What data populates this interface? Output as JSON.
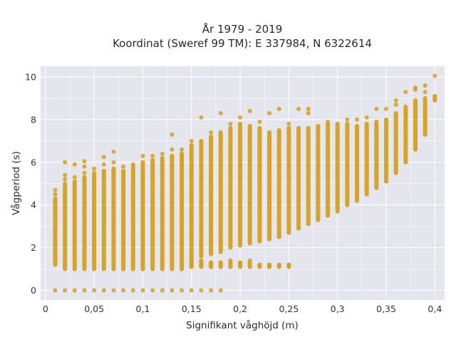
{
  "chart_data": {
    "type": "scatter",
    "title_line1": "År 1979 - 2019",
    "title_line2": "Koordinat (Sweref 99 TM): E 337984, N 6322614",
    "xlabel": "Signifikant våghöjd (m)",
    "ylabel": "Vågperiod (s)",
    "xlim": [
      -0.005,
      0.41
    ],
    "ylim": [
      -0.45,
      10.5
    ],
    "x_ticks": [
      0,
      0.05,
      0.1,
      0.15,
      0.2,
      0.25,
      0.3,
      0.35,
      0.4
    ],
    "x_tick_labels": [
      "0",
      "0,05",
      "0,1",
      "0,15",
      "0,2",
      "0,25",
      "0,3",
      "0,35",
      "0,4"
    ],
    "y_ticks": [
      0,
      2,
      4,
      6,
      8,
      10
    ],
    "y_tick_labels": [
      "0",
      "2",
      "4",
      "6",
      "8",
      "10"
    ],
    "grid": true,
    "colors": {
      "marker": "#d4a01c",
      "plot_bg": "#e5e5ee",
      "grid": "#ffffff"
    },
    "columns": [
      {
        "x": 0.01,
        "low": 1.2,
        "high": 4.3,
        "outliers": [
          4.5,
          4.7,
          2.7,
          0
        ]
      },
      {
        "x": 0.02,
        "low": 1.0,
        "high": 5.0,
        "outliers": [
          5.2,
          5.4,
          6.0,
          0
        ]
      },
      {
        "x": 0.03,
        "low": 1.0,
        "high": 5.1,
        "outliers": [
          5.3,
          5.9,
          0
        ]
      },
      {
        "x": 0.04,
        "low": 1.0,
        "high": 5.3,
        "outliers": [
          5.5,
          5.8,
          6.05,
          0
        ]
      },
      {
        "x": 0.05,
        "low": 1.0,
        "high": 5.5,
        "outliers": [
          5.7,
          0
        ]
      },
      {
        "x": 0.06,
        "low": 1.0,
        "high": 5.6,
        "outliers": [
          5.9,
          6.25,
          0
        ]
      },
      {
        "x": 0.07,
        "low": 1.0,
        "high": 5.7,
        "outliers": [
          6.0,
          6.5,
          0
        ]
      },
      {
        "x": 0.08,
        "low": 1.0,
        "high": 5.6,
        "outliers": [
          5.8,
          0
        ]
      },
      {
        "x": 0.09,
        "low": 1.0,
        "high": 5.8,
        "outliers": [
          5.9,
          0
        ]
      },
      {
        "x": 0.1,
        "low": 1.0,
        "high": 6.0,
        "outliers": [
          6.3,
          0
        ]
      },
      {
        "x": 0.11,
        "low": 1.0,
        "high": 6.1,
        "outliers": [
          6.3,
          0
        ]
      },
      {
        "x": 0.12,
        "low": 1.0,
        "high": 6.2,
        "outliers": [
          6.4,
          0
        ]
      },
      {
        "x": 0.13,
        "low": 1.0,
        "high": 6.3,
        "outliers": [
          6.6,
          7.3,
          0
        ]
      },
      {
        "x": 0.14,
        "low": 1.0,
        "high": 6.4,
        "outliers": [
          6.6,
          0
        ]
      },
      {
        "x": 0.15,
        "low": 1.5,
        "high": 6.8,
        "outliers": [
          7.0,
          1.2,
          0
        ]
      },
      {
        "x": 0.16,
        "low": 1.6,
        "high": 7.0,
        "outliers": [
          8.1,
          1.2,
          0
        ]
      },
      {
        "x": 0.17,
        "low": 1.7,
        "high": 7.2,
        "outliers": [
          7.4,
          1.3,
          0
        ]
      },
      {
        "x": 0.18,
        "low": 1.8,
        "high": 7.4,
        "outliers": [
          8.3,
          1.3,
          0
        ]
      },
      {
        "x": 0.19,
        "low": 2.0,
        "high": 7.6,
        "outliers": [
          7.8,
          1.4
        ]
      },
      {
        "x": 0.2,
        "low": 2.1,
        "high": 7.8,
        "outliers": [
          8.1,
          1.3
        ]
      },
      {
        "x": 0.21,
        "low": 2.2,
        "high": 7.7,
        "outliers": [
          8.4,
          1.4
        ]
      },
      {
        "x": 0.22,
        "low": 2.3,
        "high": 7.6,
        "outliers": [
          7.9,
          1.2
        ]
      },
      {
        "x": 0.23,
        "low": 2.4,
        "high": 7.4,
        "outliers": [
          8.3,
          1.2
        ]
      },
      {
        "x": 0.24,
        "low": 2.5,
        "high": 7.5,
        "outliers": [
          8.5,
          1.2
        ]
      },
      {
        "x": 0.25,
        "low": 2.7,
        "high": 7.6,
        "outliers": [
          7.8,
          1.2
        ]
      },
      {
        "x": 0.26,
        "low": 2.9,
        "high": 7.6,
        "outliers": [
          8.5
        ]
      },
      {
        "x": 0.27,
        "low": 3.1,
        "high": 7.6,
        "outliers": [
          8.3,
          8.5
        ]
      },
      {
        "x": 0.28,
        "low": 3.3,
        "high": 7.7,
        "outliers": []
      },
      {
        "x": 0.29,
        "low": 3.5,
        "high": 7.8,
        "outliers": [
          7.9
        ]
      },
      {
        "x": 0.3,
        "low": 3.7,
        "high": 7.8,
        "outliers": []
      },
      {
        "x": 0.31,
        "low": 4.0,
        "high": 7.8,
        "outliers": [
          8.0
        ]
      },
      {
        "x": 0.32,
        "low": 4.2,
        "high": 7.7,
        "outliers": [
          8.0
        ]
      },
      {
        "x": 0.33,
        "low": 4.5,
        "high": 7.8,
        "outliers": [
          8.1
        ]
      },
      {
        "x": 0.34,
        "low": 4.8,
        "high": 7.9,
        "outliers": [
          8.5
        ]
      },
      {
        "x": 0.35,
        "low": 5.1,
        "high": 8.0,
        "outliers": [
          8.5
        ]
      },
      {
        "x": 0.36,
        "low": 5.5,
        "high": 8.3,
        "outliers": [
          8.7,
          8.9
        ]
      },
      {
        "x": 0.37,
        "low": 6.0,
        "high": 8.6,
        "outliers": [
          9.3
        ]
      },
      {
        "x": 0.38,
        "low": 6.6,
        "high": 8.9,
        "outliers": [
          9.4,
          9.5
        ]
      },
      {
        "x": 0.39,
        "low": 7.3,
        "high": 9.0,
        "outliers": [
          9.3,
          9.6
        ]
      },
      {
        "x": 0.4,
        "low": 8.9,
        "high": 9.1,
        "outliers": [
          10.05
        ]
      }
    ],
    "low_branch": [
      {
        "x": 0.15,
        "low": 1.1,
        "high": 1.4
      },
      {
        "x": 0.16,
        "low": 1.1,
        "high": 1.4
      },
      {
        "x": 0.17,
        "low": 1.1,
        "high": 1.3
      },
      {
        "x": 0.18,
        "low": 1.1,
        "high": 1.3
      },
      {
        "x": 0.19,
        "low": 1.1,
        "high": 1.3
      },
      {
        "x": 0.2,
        "low": 1.1,
        "high": 1.3
      },
      {
        "x": 0.21,
        "low": 1.1,
        "high": 1.3
      },
      {
        "x": 0.22,
        "low": 1.1,
        "high": 1.2
      },
      {
        "x": 0.23,
        "low": 1.1,
        "high": 1.2
      },
      {
        "x": 0.24,
        "low": 1.1,
        "high": 1.2
      },
      {
        "x": 0.25,
        "low": 1.1,
        "high": 1.2
      }
    ]
  }
}
